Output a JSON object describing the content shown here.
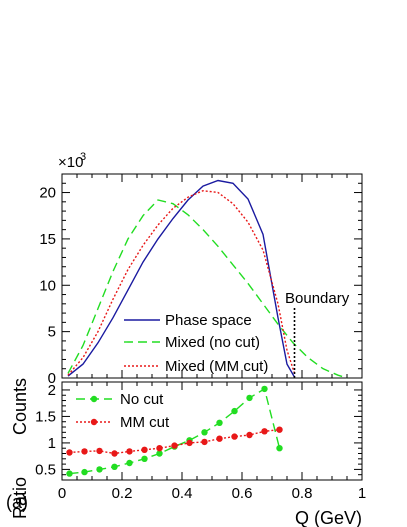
{
  "chart_data": [
    {
      "type": "line",
      "panel": "top",
      "ylabel": "Counts",
      "y_multiplier_label": "×10",
      "y_multiplier_exp": "3",
      "xlim": [
        0,
        1
      ],
      "ylim": [
        0,
        22
      ],
      "y_ticks": [
        0,
        5,
        10,
        15,
        20
      ],
      "y_tick_labels": [
        "0",
        "5",
        "10",
        "15",
        "20"
      ],
      "annotation": "Boundary",
      "boundary_x": 0.775,
      "series": [
        {
          "name": "Phase space",
          "color": "#1a1aa0",
          "style": "solid",
          "x": [
            0.02,
            0.07,
            0.12,
            0.17,
            0.22,
            0.27,
            0.32,
            0.37,
            0.42,
            0.47,
            0.52,
            0.57,
            0.62,
            0.67,
            0.72,
            0.75,
            0.775
          ],
          "y": [
            0.2,
            1.5,
            3.8,
            6.5,
            9.5,
            12.5,
            15.0,
            17.2,
            19.2,
            20.7,
            21.3,
            21.0,
            19.3,
            15.5,
            6.5,
            1.5,
            0.1
          ]
        },
        {
          "name": "Mixed (no cut)",
          "color": "#22dd22",
          "style": "dashed",
          "x": [
            0.02,
            0.07,
            0.12,
            0.17,
            0.22,
            0.27,
            0.32,
            0.37,
            0.42,
            0.47,
            0.52,
            0.57,
            0.62,
            0.67,
            0.72,
            0.77,
            0.82,
            0.87,
            0.92,
            0.95
          ],
          "y": [
            0.5,
            3.5,
            7.5,
            11.5,
            15.0,
            17.5,
            19.2,
            18.8,
            17.6,
            16.0,
            14.2,
            12.2,
            10.2,
            8.0,
            5.8,
            3.8,
            2.2,
            1.0,
            0.3,
            0.0
          ]
        },
        {
          "name": "Mixed (MM cut)",
          "color": "#e81818",
          "style": "dotted",
          "x": [
            0.02,
            0.07,
            0.12,
            0.17,
            0.22,
            0.27,
            0.32,
            0.37,
            0.42,
            0.47,
            0.52,
            0.57,
            0.62,
            0.67,
            0.72,
            0.75,
            0.775
          ],
          "y": [
            0.3,
            2.2,
            5.0,
            8.5,
            11.7,
            14.3,
            16.5,
            18.3,
            19.5,
            20.2,
            20.0,
            18.8,
            16.8,
            13.8,
            8.0,
            3.0,
            0.5
          ]
        }
      ]
    },
    {
      "type": "line",
      "panel": "bottom",
      "ylabel": "Ratio",
      "xlabel": "Q (GeV)",
      "panel_label": "(a)",
      "xlim": [
        0,
        1
      ],
      "ylim": [
        0.3,
        2.15
      ],
      "x_ticks": [
        0,
        0.2,
        0.4,
        0.6,
        0.8,
        1
      ],
      "x_tick_labels": [
        "0",
        "0.2",
        "0.4",
        "0.6",
        "0.8",
        "1"
      ],
      "y_ticks": [
        0.5,
        1,
        1.5,
        2
      ],
      "y_tick_labels": [
        "0.5",
        "1",
        "1.5",
        "2"
      ],
      "series": [
        {
          "name": "No cut",
          "color": "#22dd22",
          "style": "dashed",
          "x": [
            0.025,
            0.075,
            0.125,
            0.175,
            0.225,
            0.275,
            0.325,
            0.375,
            0.425,
            0.475,
            0.525,
            0.575,
            0.625,
            0.675,
            0.725
          ],
          "y": [
            0.42,
            0.45,
            0.5,
            0.55,
            0.62,
            0.7,
            0.8,
            0.93,
            1.05,
            1.2,
            1.38,
            1.6,
            1.85,
            2.02,
            0.9
          ]
        },
        {
          "name": "MM cut",
          "color": "#e81818",
          "style": "dotted",
          "x": [
            0.025,
            0.075,
            0.125,
            0.175,
            0.225,
            0.275,
            0.325,
            0.375,
            0.425,
            0.475,
            0.525,
            0.575,
            0.625,
            0.675,
            0.725
          ],
          "y": [
            0.82,
            0.84,
            0.85,
            0.8,
            0.84,
            0.87,
            0.9,
            0.95,
            1.0,
            1.02,
            1.08,
            1.12,
            1.15,
            1.22,
            1.25
          ]
        }
      ]
    }
  ]
}
